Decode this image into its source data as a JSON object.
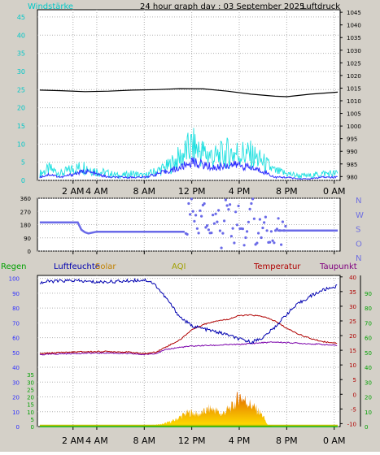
{
  "header": {
    "title": "24 hour graph day : 03 September 2025",
    "left_label": "Windstärke",
    "right_label": "Luftdruck"
  },
  "colors": {
    "background": "#d4d0c8",
    "plot_bg": "#ffffff",
    "wind": "#20e0e0",
    "gust": "#00c8d8",
    "pressure": "#000000",
    "direction": "#6a6ae8",
    "rain": "#00b000",
    "humidity": "#0000b0",
    "solar": "#e0a000",
    "aqi": "#c0c000",
    "temperature": "#b00000",
    "dewpoint": "#7a00aa",
    "labels_cyan": "#00c8c8",
    "labels_blue": "#3030ff",
    "labels_red": "#b00000",
    "labels_green": "#00a000",
    "labels_purple": "#800080"
  },
  "x_ticks": [
    "2 AM",
    "4 AM",
    "8 AM",
    "12 PM",
    "4 PM",
    "8 PM",
    "0 AM"
  ],
  "x_tick_hours": [
    2,
    4,
    8,
    12,
    16,
    20,
    24
  ],
  "chart_data": [
    {
      "type": "line",
      "title": "24 hour graph day : 03 September 2025",
      "x_range_hours": [
        -1,
        24.5
      ],
      "left_axis": {
        "label": "Windstärke",
        "ticks": [
          0,
          5,
          10,
          15,
          20,
          25,
          30,
          35,
          40,
          45
        ],
        "range": [
          0,
          47
        ]
      },
      "right_axis": {
        "label": "Luftdruck",
        "ticks": [
          980,
          985,
          990,
          995,
          1000,
          1005,
          1010,
          1015,
          1020,
          1025,
          1030,
          1035,
          1040,
          1045
        ],
        "range": [
          978.5,
          1046
        ]
      },
      "series": [
        {
          "name": "Luftdruck",
          "axis": "right",
          "x": [
            -0.8,
            1,
            3,
            5,
            7,
            9,
            11,
            13,
            15,
            17,
            19,
            20,
            22,
            24.3
          ],
          "y": [
            1014.2,
            1014.0,
            1013.6,
            1013.8,
            1014.2,
            1014.4,
            1014.8,
            1014.7,
            1013.8,
            1012.6,
            1011.8,
            1011.6,
            1012.6,
            1013.4
          ]
        },
        {
          "name": "Windstärke",
          "axis": "left",
          "x": [
            -0.8,
            0,
            1,
            2,
            3,
            4,
            5,
            6,
            7,
            8,
            9,
            10,
            11,
            12,
            13,
            14,
            15,
            16,
            17,
            18,
            19,
            20,
            21,
            22,
            23,
            24.3
          ],
          "y": [
            1,
            2,
            1,
            2,
            3,
            2,
            1,
            1,
            1,
            1,
            2,
            3,
            4,
            6,
            5,
            4,
            5,
            5,
            4,
            3,
            1,
            1,
            0.5,
            0.5,
            1,
            1
          ]
        },
        {
          "name": "Böen",
          "axis": "left",
          "x": [
            -0.8,
            0,
            1,
            2,
            3,
            4,
            5,
            6,
            7,
            8,
            9,
            10,
            11,
            12,
            13,
            14,
            15,
            16,
            17,
            18,
            19,
            20,
            21,
            22,
            23,
            24.3
          ],
          "y": [
            3,
            5,
            3,
            5,
            6,
            4,
            3,
            2,
            3,
            2,
            4,
            6,
            10,
            15,
            12,
            10,
            12,
            12,
            11,
            8,
            4,
            3,
            2,
            2,
            3,
            3
          ]
        }
      ]
    },
    {
      "type": "scatter",
      "y_axis": {
        "ticks": [
          0,
          90,
          180,
          270,
          360
        ],
        "range": [
          0,
          360
        ]
      },
      "direction_labels": [
        "N",
        "W",
        "S",
        "O",
        "N"
      ],
      "series": [
        {
          "name": "Windrichtung",
          "x": [
            -0.8,
            2.4,
            2.7,
            3,
            3.3,
            3.6,
            4,
            5,
            6,
            7,
            8,
            9,
            10,
            11.4
          ],
          "y": [
            195,
            195,
            145,
            128,
            120,
            125,
            132,
            132,
            132,
            132,
            132,
            132,
            132,
            132
          ]
        },
        {
          "name": "Windrichtung (variabel)",
          "x": [
            11.5,
            12,
            12.5,
            13,
            13.5,
            14,
            14.5,
            15,
            15.5,
            16,
            16.5,
            17,
            17.5,
            18,
            18.5,
            19,
            19.5,
            20,
            22,
            24.3
          ],
          "y": [
            120,
            300,
            80,
            345,
            60,
            260,
            100,
            320,
            140,
            200,
            70,
            340,
            110,
            160,
            130,
            140,
            140,
            140,
            140,
            140
          ]
        }
      ]
    },
    {
      "type": "line",
      "legend": [
        "Regen",
        "Luftfeuchte",
        "Solar",
        "AQI",
        "Temperatur",
        "Taupunkt"
      ],
      "axes": {
        "regen_left": {
          "label": "Regen",
          "ticks": [
            0,
            10,
            20,
            30,
            40,
            50,
            60,
            70,
            80,
            90,
            100
          ],
          "range": [
            0,
            102
          ]
        },
        "solar": {
          "label": "Solar",
          "ticks": [
            0,
            5,
            10,
            15,
            20,
            25,
            30,
            35
          ],
          "range": [
            0,
            35
          ]
        },
        "temperature_right": {
          "label": "Temperatur",
          "ticks": [
            -10,
            -5,
            0,
            5,
            10,
            15,
            20,
            25,
            30,
            35,
            40
          ],
          "range": [
            -11,
            40.5
          ]
        },
        "percent_far_right": {
          "label": "Taupunkt",
          "ticks": [
            0,
            10,
            20,
            30,
            40,
            50,
            60,
            70,
            80,
            90
          ],
          "range": [
            0,
            102
          ]
        }
      },
      "series": [
        {
          "name": "Luftfeuchte",
          "axis": "regen_left",
          "x": [
            -0.8,
            0,
            2,
            4,
            6,
            8,
            8.5,
            9,
            10,
            11,
            12,
            13,
            14,
            15,
            16,
            17,
            18,
            19,
            20,
            21,
            22,
            23,
            24.3
          ],
          "y": [
            97,
            98,
            98.5,
            97.5,
            98,
            99,
            98,
            95,
            85,
            74,
            68,
            66,
            64,
            62,
            59,
            57,
            60,
            67,
            76,
            83,
            88,
            92,
            95
          ]
        },
        {
          "name": "Temperatur",
          "axis": "temperature_right",
          "x": [
            -0.8,
            1,
            3,
            5,
            7,
            8,
            9,
            10,
            11,
            12,
            13,
            14,
            15,
            16,
            17,
            18,
            19,
            20,
            21,
            22,
            23,
            24.3
          ],
          "y": [
            13.8,
            14.3,
            14.5,
            14.6,
            14.3,
            13.8,
            14.4,
            16.5,
            18.5,
            22,
            23.8,
            25,
            25.5,
            26.8,
            27,
            26.5,
            25,
            22.5,
            20.5,
            19,
            18,
            17.4
          ]
        },
        {
          "name": "Taupunkt",
          "axis": "temperature_right",
          "x": [
            -0.8,
            1,
            3,
            5,
            7,
            8,
            9,
            10,
            11,
            12,
            13,
            14,
            15,
            16,
            17,
            18,
            19,
            20,
            21,
            22,
            23,
            24.3
          ],
          "y": [
            13.5,
            13.8,
            14,
            14.1,
            13.8,
            13.5,
            14,
            15.4,
            16,
            16.4,
            16.6,
            16.7,
            16.9,
            17,
            17.3,
            17.6,
            17.8,
            17.6,
            17.4,
            17.2,
            17,
            16.6
          ]
        },
        {
          "name": "Solar",
          "axis": "solar",
          "x": [
            -0.8,
            6.5,
            7.5,
            8.5,
            9.5,
            10.5,
            11,
            11.5,
            12,
            12.5,
            13,
            13.5,
            14,
            14.5,
            15,
            15.5,
            16,
            16.5,
            17,
            17.5,
            18,
            18.4,
            19,
            24.3
          ],
          "y": [
            0,
            0,
            0.3,
            1,
            2,
            5,
            8,
            11,
            12,
            10,
            12,
            15,
            14,
            10,
            14,
            17,
            26,
            22,
            18,
            14,
            9,
            1,
            0,
            0
          ]
        },
        {
          "name": "Regen",
          "axis": "regen_left",
          "x": [
            -0.8,
            24.3
          ],
          "y": [
            0,
            0
          ]
        },
        {
          "name": "AQI",
          "axis": "regen_left",
          "x": [
            -0.8,
            24.3
          ],
          "y": [
            0.8,
            0.8
          ]
        }
      ]
    }
  ]
}
